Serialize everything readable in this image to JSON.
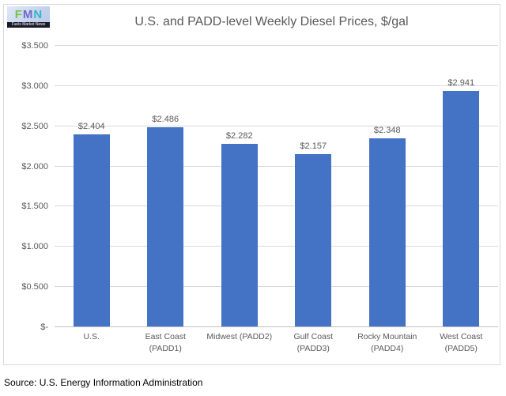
{
  "logo": {
    "letters": [
      {
        "char": "F",
        "color": "#7dc24b"
      },
      {
        "char": "M",
        "color": "#6e6bc7"
      },
      {
        "char": "N",
        "color": "#35b5c9"
      }
    ],
    "caption": "Fuels Market News"
  },
  "source": "Source: U.S. Energy Information Administration",
  "chart_data": {
    "type": "bar",
    "title": "U.S. and PADD-level Weekly Diesel Prices, $/gal",
    "categories": [
      "U.S.",
      "East Coast (PADD1)",
      "Midwest (PADD2)",
      "Gulf Coast (PADD3)",
      "Rocky Mountain (PADD4)",
      "West Coast (PADD5)"
    ],
    "values": [
      2.404,
      2.486,
      2.282,
      2.157,
      2.348,
      2.941
    ],
    "data_labels": [
      "$2.404",
      "$2.486",
      "$2.282",
      "$2.157",
      "$2.348",
      "$2.941"
    ],
    "xlabel": "",
    "ylabel": "",
    "ylim": [
      0,
      3.5
    ],
    "ytick_step": 0.5,
    "ytick_labels": [
      "$-",
      "$0.500",
      "$1.000",
      "$1.500",
      "$2.000",
      "$2.500",
      "$3.000",
      "$3.500"
    ],
    "bar_color": "#4472c4",
    "grid": true,
    "legend": false,
    "text_color": "#595959",
    "gridline_color": "#d9d9d9"
  }
}
